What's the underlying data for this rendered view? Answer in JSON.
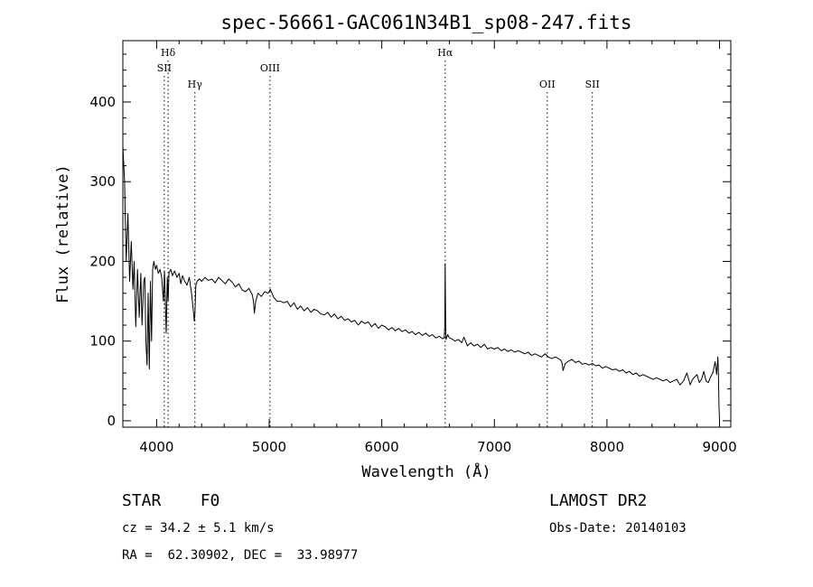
{
  "chart_data": {
    "type": "line",
    "title": "spec-56661-GAC061N34B1_sp08-247.fits",
    "xlabel": "Wavelength (Å)",
    "ylabel": "Flux (relative)",
    "xlim": [
      3700,
      9100
    ],
    "ylim": [
      -8,
      477
    ],
    "xticks": [
      4000,
      5000,
      6000,
      7000,
      8000,
      9000
    ],
    "yticks": [
      0,
      100,
      200,
      300,
      400
    ],
    "grid": false,
    "spectral_lines": [
      {
        "label": "Hδ",
        "x": 4102,
        "row": 1
      },
      {
        "label": "SII",
        "x": 4068,
        "row": 2
      },
      {
        "label": "Hγ",
        "x": 4340,
        "row": 3
      },
      {
        "label": "OIII",
        "x": 5007,
        "row": 2
      },
      {
        "label": "Hα",
        "x": 6563,
        "row": 1
      },
      {
        "label": "OII",
        "x": 7470,
        "row": 3
      },
      {
        "label": "SII",
        "x": 7870,
        "row": 3
      }
    ],
    "series": [
      {
        "x": [
          3700,
          3715,
          3730,
          3745,
          3760,
          3775,
          3790,
          3800,
          3815,
          3830,
          3845,
          3860,
          3870,
          3885,
          3895,
          3905,
          3915,
          3925,
          3935,
          3945,
          3955,
          3965,
          3975,
          3990,
          4000,
          4015,
          4030,
          4045,
          4060,
          4070,
          4085,
          4095,
          4102,
          4110,
          4125,
          4140,
          4160,
          4180,
          4200,
          4215,
          4230,
          4250,
          4270,
          4290,
          4310,
          4325,
          4335,
          4340,
          4348,
          4360,
          4380,
          4400,
          4430,
          4460,
          4490,
          4520,
          4550,
          4580,
          4610,
          4640,
          4670,
          4700,
          4730,
          4760,
          4790,
          4820,
          4850,
          4860,
          4868,
          4880,
          4900,
          4930,
          4960,
          4990,
          5010,
          5040,
          5070,
          5100,
          5130,
          5160,
          5190,
          5220,
          5250,
          5280,
          5310,
          5340,
          5370,
          5400,
          5430,
          5460,
          5490,
          5520,
          5550,
          5580,
          5610,
          5640,
          5670,
          5700,
          5730,
          5760,
          5790,
          5820,
          5850,
          5880,
          5910,
          5940,
          5970,
          6000,
          6030,
          6060,
          6090,
          6120,
          6150,
          6180,
          6210,
          6240,
          6270,
          6300,
          6330,
          6360,
          6390,
          6420,
          6450,
          6480,
          6510,
          6540,
          6555,
          6560,
          6563,
          6566,
          6570,
          6585,
          6600,
          6620,
          6650,
          6680,
          6710,
          6730,
          6760,
          6790,
          6820,
          6850,
          6880,
          6910,
          6940,
          6970,
          7000,
          7030,
          7060,
          7090,
          7120,
          7150,
          7180,
          7210,
          7240,
          7270,
          7300,
          7330,
          7360,
          7390,
          7420,
          7450,
          7480,
          7510,
          7540,
          7570,
          7590,
          7600,
          7610,
          7630,
          7660,
          7690,
          7720,
          7750,
          7780,
          7810,
          7840,
          7870,
          7900,
          7930,
          7960,
          7990,
          8020,
          8050,
          8080,
          8110,
          8140,
          8170,
          8200,
          8230,
          8260,
          8290,
          8320,
          8350,
          8380,
          8410,
          8440,
          8470,
          8500,
          8530,
          8560,
          8590,
          8620,
          8650,
          8680,
          8710,
          8740,
          8760,
          8780,
          8800,
          8820,
          8840,
          8860,
          8880,
          8900,
          8920,
          8940,
          8960,
          8975,
          8985,
          8990,
          8995,
          9000
        ],
        "y": [
          345,
          300,
          200,
          260,
          175,
          225,
          165,
          200,
          118,
          190,
          130,
          185,
          120,
          175,
          180,
          100,
          70,
          160,
          65,
          175,
          100,
          190,
          200,
          190,
          195,
          185,
          190,
          180,
          150,
          188,
          110,
          180,
          150,
          186,
          190,
          182,
          188,
          180,
          185,
          172,
          182,
          175,
          170,
          180,
          160,
          140,
          125,
          135,
          170,
          175,
          178,
          175,
          180,
          176,
          178,
          173,
          180,
          176,
          172,
          178,
          174,
          168,
          172,
          164,
          162,
          166,
          158,
          150,
          135,
          150,
          160,
          156,
          162,
          160,
          165,
          155,
          150,
          150,
          148,
          150,
          143,
          148,
          140,
          144,
          138,
          142,
          136,
          140,
          138,
          134,
          133,
          136,
          130,
          134,
          128,
          131,
          126,
          128,
          124,
          126,
          120,
          125,
          122,
          124,
          118,
          122,
          116,
          120,
          118,
          114,
          117,
          113,
          116,
          112,
          114,
          110,
          112,
          108,
          111,
          107,
          110,
          106,
          108,
          104,
          106,
          103,
          104,
          120,
          197,
          140,
          102,
          108,
          104,
          103,
          100,
          102,
          98,
          105,
          94,
          98,
          94,
          96,
          92,
          96,
          90,
          92,
          90,
          92,
          88,
          90,
          87,
          89,
          86,
          88,
          86,
          84,
          86,
          82,
          84,
          82,
          80,
          84,
          80,
          78,
          80,
          78,
          76,
          73,
          63,
          72,
          75,
          77,
          73,
          75,
          71,
          72,
          70,
          72,
          69,
          70,
          66,
          68,
          66,
          64,
          65,
          62,
          64,
          60,
          62,
          58,
          60,
          56,
          58,
          56,
          54,
          52,
          54,
          52,
          50,
          52,
          48,
          50,
          52,
          45,
          50,
          60,
          45,
          52,
          55,
          58,
          48,
          52,
          62,
          50,
          48,
          55,
          60,
          74,
          58,
          80,
          60,
          20,
          0
        ]
      }
    ]
  },
  "info": {
    "left_line1": "STAR    F0",
    "left_line2": "cz = 34.2 ± 5.1 km/s",
    "left_line3": "RA =  62.30902, DEC =  33.98977",
    "right_line1": "LAMOST DR2",
    "right_line2": "Obs-Date: 20140103"
  }
}
